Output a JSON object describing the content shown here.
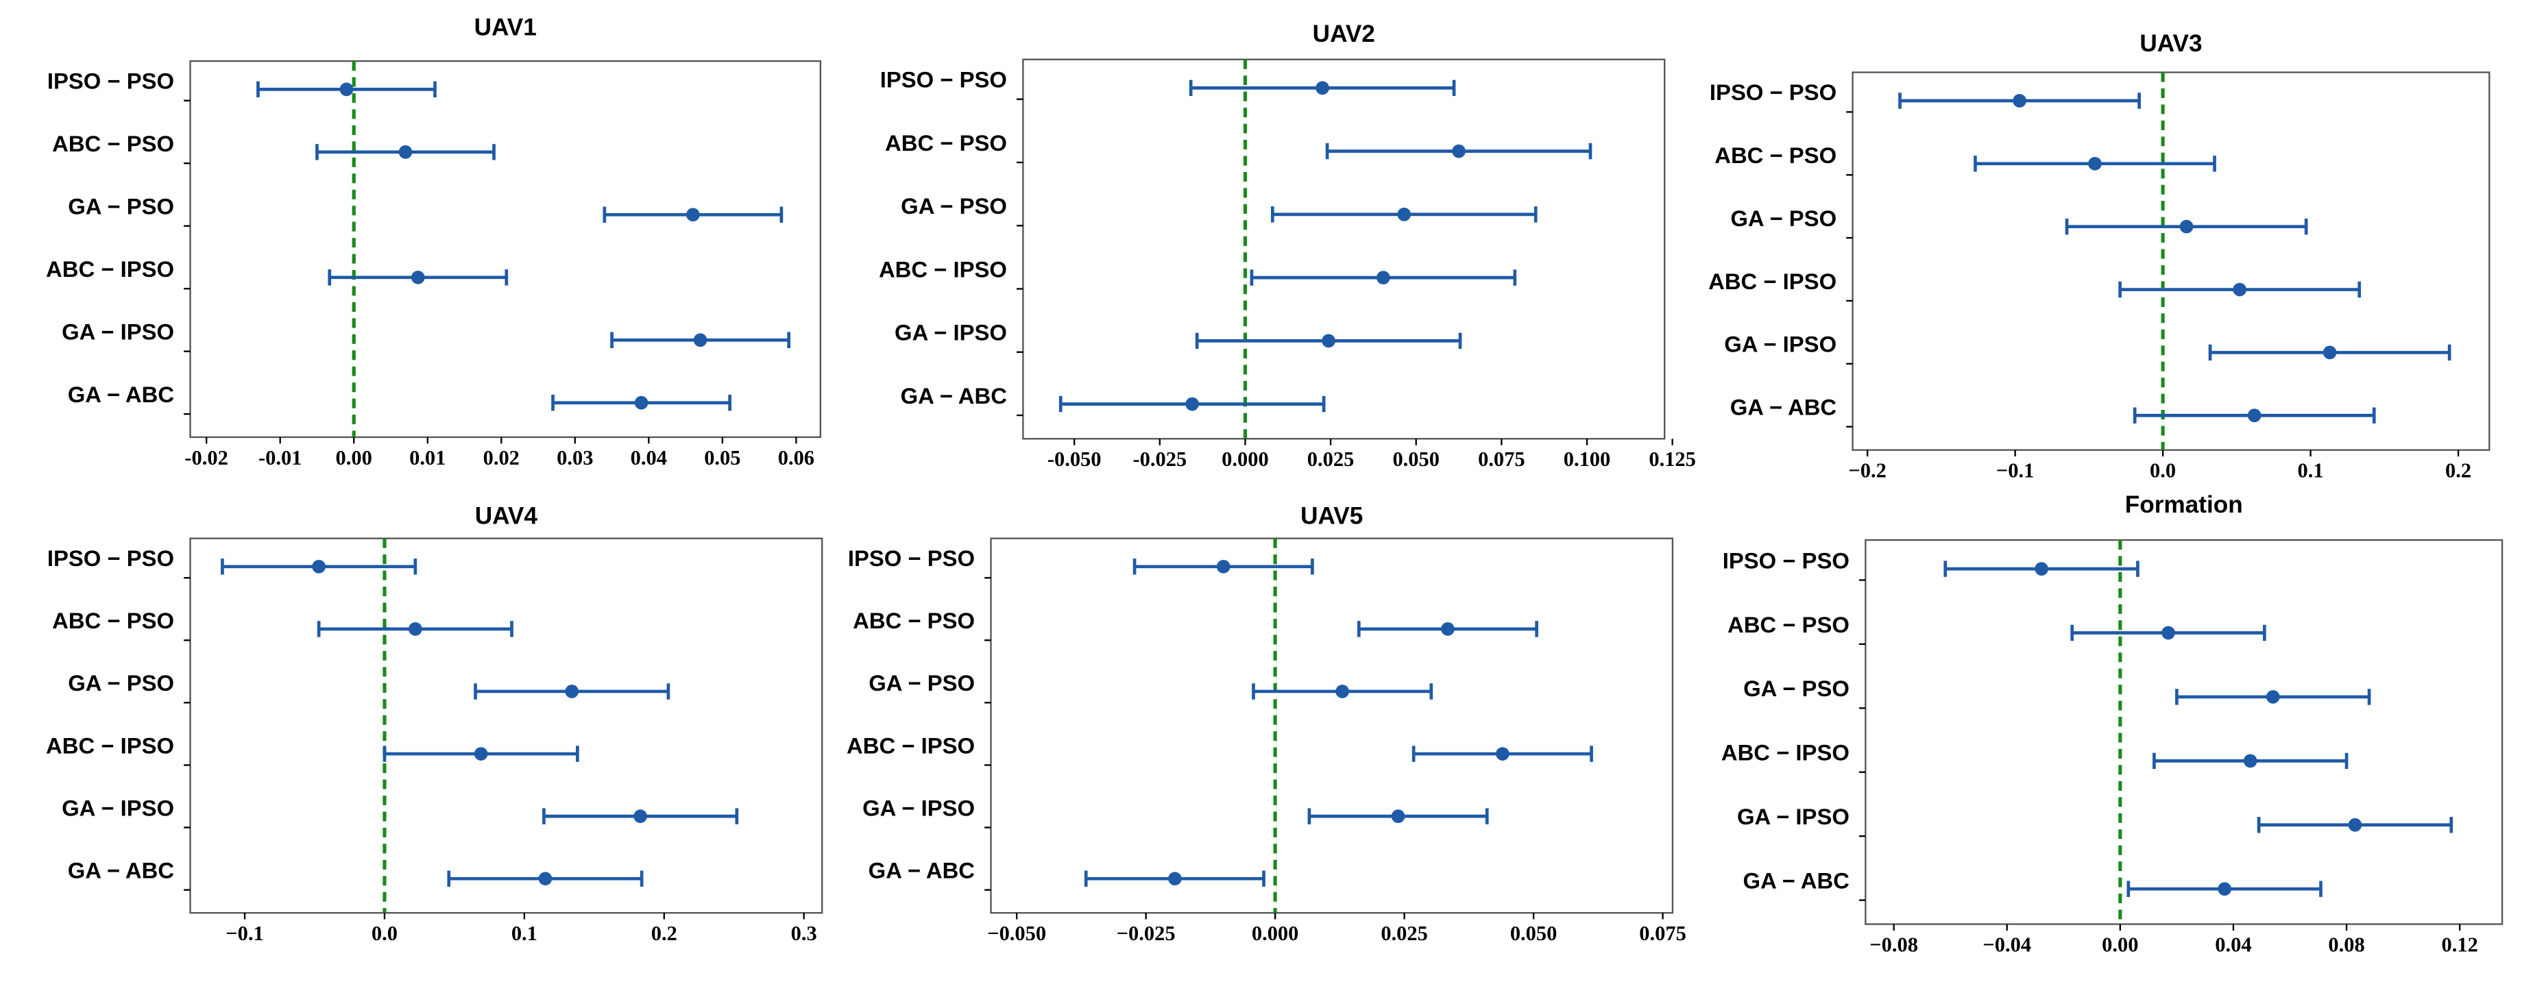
{
  "chart_data": [
    {
      "type": "errorbar",
      "title": "UAV1",
      "categories": [
        "IPSO − PSO",
        "ABC − PSO",
        "GA − PSO",
        "ABC − IPSO",
        "GA − IPSO",
        "GA − ABC"
      ],
      "values": [
        -0.001,
        0.007,
        0.046,
        0.0087,
        0.047,
        0.039
      ],
      "errors": [
        0.012,
        0.012,
        0.012,
        0.012,
        0.012,
        0.012
      ],
      "color": "#1f5aa6",
      "ref_line": {
        "value": 0,
        "color": "#1a8a1a"
      },
      "xlim": [
        -0.0222,
        0.0633
      ],
      "xticks": [
        -0.02,
        -0.01,
        {
          "value": 0,
          "label": "0.00"
        },
        0.01,
        0.02,
        0.03,
        0.04,
        0.05,
        0.06
      ]
    },
    {
      "type": "errorbar",
      "title": "UAV2",
      "categories": [
        "IPSO − PSO",
        "ABC − PSO",
        "GA − PSO",
        "ABC − IPSO",
        "GA − IPSO",
        "GA − ABC"
      ],
      "values": [
        0.0226,
        0.0625,
        0.0465,
        0.0404,
        0.0244,
        -0.0155
      ],
      "errors": [
        0.0385,
        0.0385,
        0.0385,
        0.0385,
        0.0385,
        0.0385
      ],
      "color": "#1f5aa6",
      "ref_line": {
        "value": 0,
        "color": "#1a8a1a"
      },
      "xlim": [
        -0.065,
        0.1227
      ],
      "xticks": [
        {
          "value": -0.05,
          "label": "-0.050"
        },
        -0.025,
        {
          "value": 0,
          "label": "0.000"
        },
        0.025,
        {
          "value": 0.05,
          "label": "0.050"
        },
        0.075,
        {
          "value": 0.1,
          "label": "0.100"
        },
        0.125
      ]
    },
    {
      "type": "errorbar",
      "title": "UAV3",
      "categories": [
        "IPSO − PSO",
        "ABC − PSO",
        "GA − PSO",
        "ABC − IPSO",
        "GA − IPSO",
        "GA − ABC"
      ],
      "values": [
        -0.097,
        -0.046,
        0.016,
        0.052,
        0.113,
        0.062
      ],
      "errors": [
        0.081,
        0.081,
        0.081,
        0.081,
        0.081,
        0.081
      ],
      "color": "#1f5aa6",
      "ref_line": {
        "value": 0,
        "color": "#1a8a1a"
      },
      "xlim": [
        -0.21,
        0.221
      ],
      "xticks": [
        {
          "value": -0.2,
          "label": "−0.2"
        },
        {
          "value": -0.1,
          "label": "−0.1"
        },
        {
          "value": 0,
          "label": "0.0"
        },
        0.1,
        0.2
      ]
    },
    {
      "type": "errorbar",
      "title": "UAV4",
      "categories": [
        "IPSO − PSO",
        "ABC − PSO",
        "GA − PSO",
        "ABC − IPSO",
        "GA − IPSO",
        "GA − ABC"
      ],
      "values": [
        -0.047,
        0.022,
        0.134,
        0.069,
        0.183,
        0.115
      ],
      "errors": [
        0.069,
        0.069,
        0.069,
        0.069,
        0.069,
        0.069
      ],
      "color": "#1f5aa6",
      "ref_line": {
        "value": 0,
        "color": "#1a8a1a"
      },
      "xlim": [
        -0.139,
        0.313
      ],
      "xticks": [
        {
          "value": -0.1,
          "label": "−0.1"
        },
        {
          "value": 0,
          "label": "0.0"
        },
        0.1,
        0.2,
        0.3
      ]
    },
    {
      "type": "errorbar",
      "title": "UAV5",
      "categories": [
        "IPSO − PSO",
        "ABC − PSO",
        "GA − PSO",
        "ABC − IPSO",
        "GA − IPSO",
        "GA − ABC"
      ],
      "values": [
        -0.01,
        0.0334,
        0.013,
        0.044,
        0.0238,
        -0.0194
      ],
      "errors": [
        0.0172,
        0.0172,
        0.0172,
        0.0172,
        0.0172,
        0.0172
      ],
      "color": "#1f5aa6",
      "ref_line": {
        "value": 0,
        "color": "#1a8a1a"
      },
      "xlim": [
        -0.055,
        0.0769
      ],
      "xticks": [
        {
          "value": -0.05,
          "label": "−0.050"
        },
        {
          "value": -0.025,
          "label": "−0.025"
        },
        {
          "value": 0,
          "label": "0.000"
        },
        0.025,
        {
          "value": 0.05,
          "label": "0.050"
        },
        0.075
      ]
    },
    {
      "type": "errorbar",
      "title": "Formation",
      "categories": [
        "IPSO − PSO",
        "ABC − PSO",
        "GA − PSO",
        "ABC − IPSO",
        "GA − IPSO",
        "GA − ABC"
      ],
      "values": [
        -0.0278,
        0.017,
        0.054,
        0.046,
        0.083,
        0.0369
      ],
      "errors": [
        0.034,
        0.034,
        0.034,
        0.034,
        0.034,
        0.034
      ],
      "color": "#1f5aa6",
      "ref_line": {
        "value": 0,
        "color": "#1a8a1a"
      },
      "xlim": [
        -0.09,
        0.135
      ],
      "xticks": [
        {
          "value": -0.08,
          "label": "−0.08"
        },
        {
          "value": -0.04,
          "label": "−0.04"
        },
        {
          "value": 0,
          "label": "0.00"
        },
        0.04,
        0.08,
        0.12
      ]
    }
  ]
}
